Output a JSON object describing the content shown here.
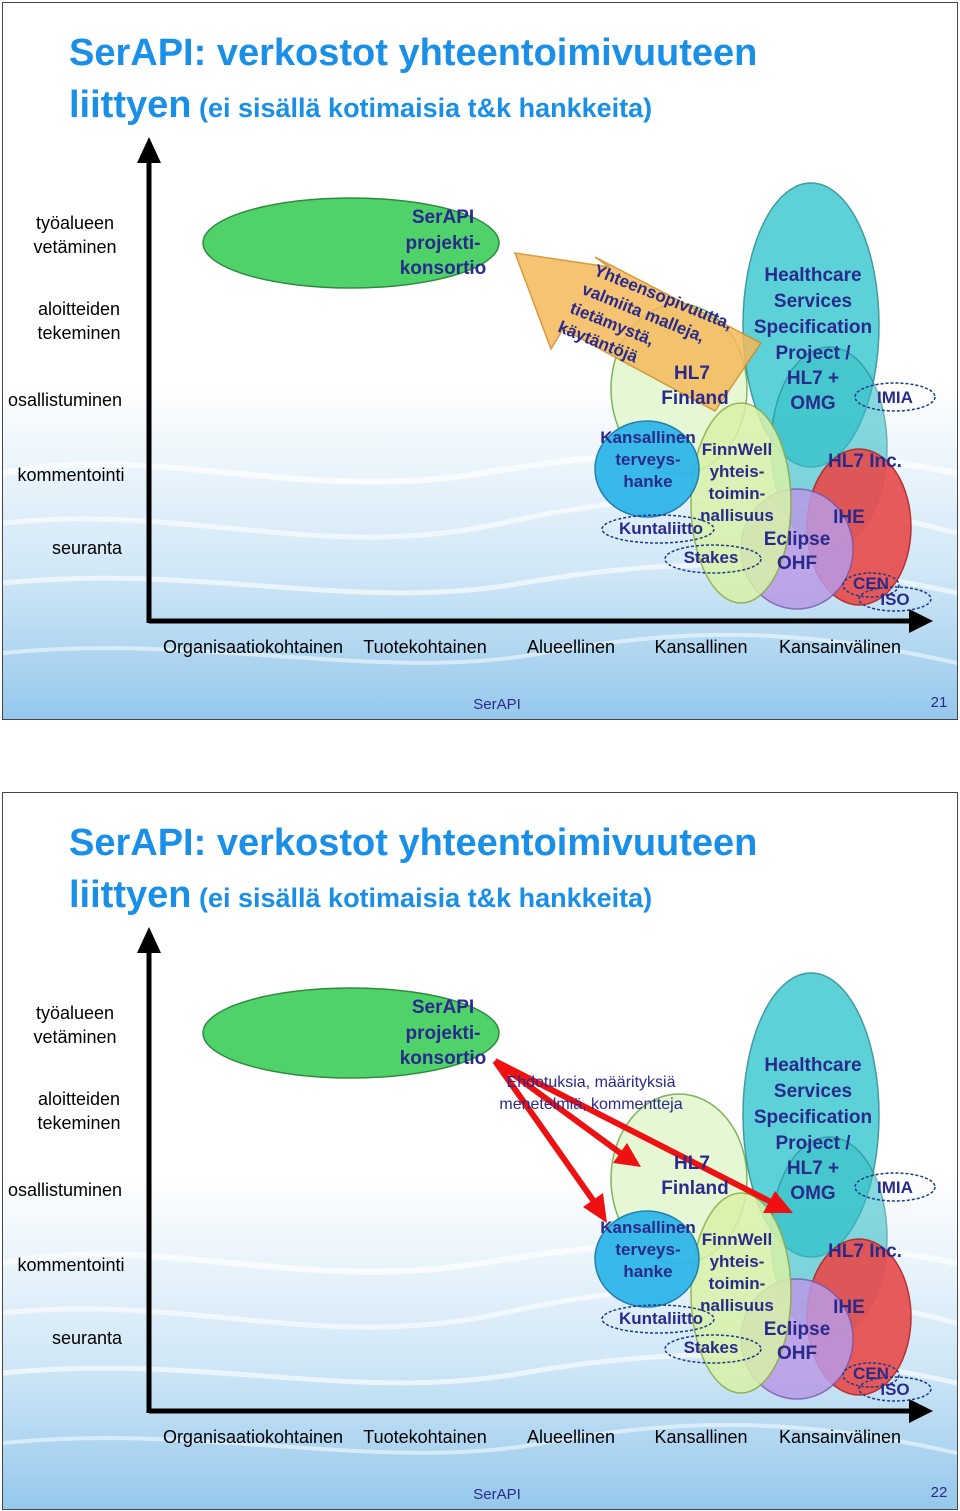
{
  "slides": [
    {
      "title_line1": "SerAPI: verkostot yhteentoimivuuteen",
      "title_line2_main": "liittyen",
      "title_line2_sub": " (ei sisällä kotimaisia t&k hankkeita)",
      "callout_lines": [
        "Yhteensopivuutta,",
        "valmiita malleja,",
        "tietämystä,",
        "käytäntöjä"
      ],
      "footer_label": "SerAPI",
      "page_number": "21"
    },
    {
      "title_line1": "SerAPI: verkostot yhteentoimivuuteen",
      "title_line2_main": "liittyen",
      "title_line2_sub": " (ei sisällä kotimaisia t&k hankkeita)",
      "arrow_label_lines": [
        "Ehdotuksia, määrityksiä",
        "menetelmiä, kommentteja"
      ],
      "footer_label": "SerAPI",
      "page_number": "22"
    }
  ],
  "diagram": {
    "y_axis_levels": [
      "työalueen vetäminen",
      "aloitteiden tekeminen",
      "osallistuminen",
      "kommentointi",
      "seuranta"
    ],
    "y_axis_lines": [
      [
        "työalueen",
        "vetäminen"
      ],
      [
        "aloitteiden",
        "tekeminen"
      ],
      [
        "osallistuminen"
      ],
      [
        "kommentointi"
      ],
      [
        "seuranta"
      ]
    ],
    "x_axis_levels": [
      "Organisaatiokohtainen",
      "Tuotekohtainen",
      "Alueellinen",
      "Kansallinen",
      "Kansainvälinen"
    ],
    "bubbles": {
      "serapi": [
        "SerAPI",
        "projekti-",
        "konsortio"
      ],
      "hl7_finland": [
        "HL7",
        "Finland"
      ],
      "kansallinen": [
        "Kansallinen",
        "terveys-",
        "hanke"
      ],
      "finnwell": [
        "FinnWell",
        "yhteis-",
        "toimin-",
        "nallisuus"
      ],
      "kuntaliitto": "Kuntaliitto",
      "stakes": "Stakes",
      "healthcare": [
        "Healthcare",
        "Services",
        "Specification",
        "Project /",
        "HL7 +",
        "OMG"
      ],
      "imia": "IMIA",
      "hl7_inc": "HL7 Inc.",
      "ihe": "IHE",
      "eclipse": "Eclipse",
      "ohf": "OHF",
      "cen": "CEN",
      "iso": "ISO"
    },
    "colors": {
      "title": "#1a8fe8",
      "serapi_bubble": "#4fd26a",
      "healthcare_bubble": "#40cbd2",
      "hl7_inc_bubble": "#e84a4a",
      "label_text": "#2a2a8c",
      "arrow_red": "#ee1111",
      "callout_orange": "#f5b95a"
    }
  }
}
